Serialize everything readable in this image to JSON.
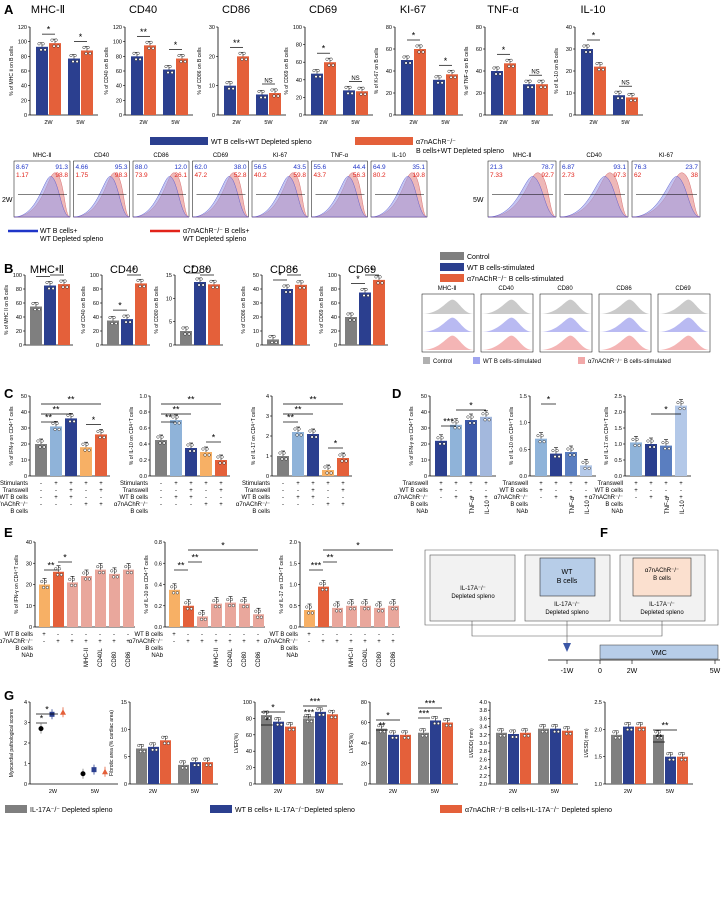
{
  "colors": {
    "wt": "#2b3f8f",
    "ko": "#e4603a",
    "control": "#7f7f7f",
    "wt_light": "#8fb3d9",
    "ko_light": "#e98a8a",
    "orange": "#f7b065",
    "peach": "#e9a79c",
    "blue_line": "#1f35c8",
    "red_line": "#e2231a"
  },
  "letters": {
    "A": "A",
    "B": "B",
    "C": "C",
    "D": "D",
    "E": "E",
    "F": "F",
    "G": "G"
  },
  "panelA": {
    "groups": [
      "2W",
      "5W"
    ],
    "charts": [
      {
        "title": "MHC-Ⅱ",
        "ylabel": "% of MHC Ⅱ on B cells",
        "yticks": [
          "0",
          "20",
          "40",
          "60",
          "80",
          "100",
          "120"
        ],
        "ymax": 120,
        "values": [
          [
            93,
            98
          ],
          [
            77,
            88
          ]
        ],
        "sig": [
          "*",
          "*"
        ]
      },
      {
        "title": "CD40",
        "ylabel": "% of CD40 on B cells",
        "yticks": [
          "0",
          "20",
          "40",
          "60",
          "80",
          "100",
          "120"
        ],
        "ymax": 120,
        "values": [
          [
            80,
            95
          ],
          [
            62,
            77
          ]
        ],
        "sig": [
          "**",
          "*"
        ]
      },
      {
        "title": "CD86",
        "ylabel": "% of CD86 on B cells",
        "yticks": [
          "0",
          "10",
          "20",
          "30"
        ],
        "ymax": 30,
        "values": [
          [
            10,
            20
          ],
          [
            7,
            7.5
          ]
        ],
        "sig": [
          "**",
          "NS"
        ]
      },
      {
        "title": "CD69",
        "ylabel": "% of CD69 on B cells",
        "yticks": [
          "0",
          "20",
          "40",
          "60",
          "80",
          "100"
        ],
        "ymax": 100,
        "values": [
          [
            47,
            60
          ],
          [
            28,
            27
          ]
        ],
        "sig": [
          "*",
          "NS"
        ]
      },
      {
        "title": "KI-67",
        "ylabel": "% of Ki-67 on B cells",
        "yticks": [
          "0",
          "20",
          "40",
          "60",
          "80"
        ],
        "ymax": 80,
        "values": [
          [
            50,
            60
          ],
          [
            32,
            37
          ]
        ],
        "sig": [
          "*",
          "*"
        ]
      },
      {
        "title": "TNF-α",
        "ylabel": "% of TNF-α on B cells",
        "yticks": [
          "0",
          "20",
          "40",
          "60",
          "80"
        ],
        "ymax": 80,
        "values": [
          [
            40,
            47
          ],
          [
            28,
            28
          ]
        ],
        "sig": [
          "*",
          "NS"
        ]
      },
      {
        "title": "IL-10",
        "ylabel": "% of IL-10 on B cells",
        "yticks": [
          "0",
          "10",
          "20",
          "30",
          "40"
        ],
        "ymax": 40,
        "values": [
          [
            30,
            22
          ],
          [
            9,
            8
          ]
        ],
        "sig": [
          "*",
          "NS"
        ]
      }
    ],
    "legend_wt": "WT B cells+WT Depleted spleno",
    "legend_ko": "α7nAChR⁻/⁻ B cells+WT Depleted spleno"
  },
  "panelA_flow": {
    "row_label_2w": "2W",
    "row_label_5w": "5W",
    "plots_2w": [
      {
        "title": "MHC-Ⅱ",
        "blue": [
          "8.67",
          "91.3"
        ],
        "red": [
          "1.17",
          "98.8"
        ]
      },
      {
        "title": "CD40",
        "blue": [
          "4.66",
          "95.3"
        ],
        "red": [
          "1.75",
          "98.3"
        ]
      },
      {
        "title": "CD86",
        "blue": [
          "88.0",
          "12.0"
        ],
        "red": [
          "73.9",
          "26.1"
        ]
      },
      {
        "title": "CD69",
        "blue": [
          "62.0",
          "38.0"
        ],
        "red": [
          "47.2",
          "52.8"
        ]
      },
      {
        "title": "KI-67",
        "blue": [
          "56.5",
          "43.5"
        ],
        "red": [
          "40.2",
          "59.8"
        ]
      },
      {
        "title": "TNF-α",
        "blue": [
          "55.6",
          "44.4"
        ],
        "red": [
          "43.7",
          "56.3"
        ]
      },
      {
        "title": "IL-10",
        "blue": [
          "64.9",
          "35.1"
        ],
        "red": [
          "80.2",
          "19.8"
        ]
      }
    ],
    "plots_5w": [
      {
        "title": "MHC-Ⅱ",
        "blue": [
          "21.3",
          "78.7"
        ],
        "red": [
          "7.33",
          "92.7"
        ]
      },
      {
        "title": "CD40",
        "blue": [
          "6.87",
          "93.1"
        ],
        "red": [
          "2.73",
          "97.3"
        ]
      },
      {
        "title": "KI-67",
        "blue": [
          "76.3",
          "23.7"
        ],
        "red": [
          "62",
          "38"
        ]
      }
    ],
    "legend_wt": "WT B cells+\nWT Depleted spleno",
    "legend_ko": "α7nAChR⁻/⁻ B cells+\nWT Depleted spleno"
  },
  "panelB": {
    "charts": [
      {
        "title": "MHC-Ⅱ",
        "ylabel": "% of MHC II on B cells",
        "yticks": [
          "0",
          "20",
          "40",
          "60",
          "80",
          "100"
        ],
        "ymax": 100,
        "values": [
          55,
          85,
          87
        ]
      },
      {
        "title": "CD40",
        "ylabel": "% of CD40 on B cells",
        "yticks": [
          "0",
          "20",
          "40",
          "60",
          "80",
          "100"
        ],
        "ymax": 100,
        "values": [
          35,
          37,
          88
        ]
      },
      {
        "title": "CD80",
        "ylabel": "% of CD80 on B cells",
        "yticks": [
          "0",
          "5",
          "10",
          "15"
        ],
        "ymax": 15,
        "values": [
          3,
          13.5,
          13
        ]
      },
      {
        "title": "CD86",
        "ylabel": "% of CD86 on B cells",
        "yticks": [
          "0",
          "10",
          "20",
          "30",
          "40",
          "50"
        ],
        "ymax": 50,
        "values": [
          4,
          40,
          43
        ]
      },
      {
        "title": "CD69",
        "ylabel": "% of CD69 on B cells",
        "yticks": [
          "0",
          "20",
          "40",
          "60",
          "80",
          "100"
        ],
        "ymax": 100,
        "values": [
          40,
          75,
          93
        ]
      }
    ],
    "legend": [
      "Control",
      "WT B cells-stimulated",
      "α7nAChR⁻/⁻ B cells-stimulated"
    ],
    "hist_titles": [
      "MHC-Ⅱ",
      "CD40",
      "CD80",
      "CD86",
      "CD69"
    ],
    "hist_legend": [
      "Control",
      "WT B cells-stimulated",
      "α7nAChR⁻/⁻ B cells-stimulated"
    ]
  },
  "panelC": {
    "charts": [
      {
        "ylabel": "% of IFN-γ on CD4⁺T cells",
        "yticks": [
          "0",
          "10",
          "20",
          "30",
          "40",
          "50"
        ],
        "ymax": 50,
        "values": [
          20,
          31,
          36,
          18,
          26
        ]
      },
      {
        "ylabel": "% of IL-10 on CD4⁺T cells",
        "yticks": [
          "0.0",
          "0.2",
          "0.4",
          "0.6",
          "0.8",
          "1.0"
        ],
        "ymax": 1.0,
        "values": [
          0.45,
          0.7,
          0.35,
          0.3,
          0.2
        ]
      },
      {
        "ylabel": "% of IL-17 on CD4⁺T cells",
        "yticks": [
          "0",
          "1",
          "2",
          "3",
          "4"
        ],
        "ymax": 4,
        "values": [
          1.0,
          2.2,
          2.1,
          0.3,
          0.9
        ]
      }
    ],
    "rows": [
      "Stimulants",
      "Transwell",
      "WT B cells",
      "α7nAChR⁻/⁻",
      "B cells"
    ],
    "row_values": [
      [
        "-",
        "+",
        "+",
        "+",
        "+"
      ],
      [
        "-",
        "-",
        "+",
        "-",
        "+"
      ],
      [
        "-",
        "+",
        "+",
        "-",
        "-"
      ],
      [
        "-",
        "-",
        "-",
        "+",
        "+"
      ]
    ]
  },
  "panelD": {
    "charts": [
      {
        "ylabel": "% of IFN-γ on CD4⁺T cells",
        "yticks": [
          "0",
          "10",
          "20",
          "30",
          "40",
          "50"
        ],
        "ymax": 50,
        "values": [
          22,
          32,
          35,
          37
        ]
      },
      {
        "ylabel": "% of IL-10 on CD4⁺T cells",
        "yticks": [
          "0.0",
          "0.5",
          "1.0",
          "1.5"
        ],
        "ymax": 1.5,
        "values": [
          0.7,
          0.42,
          0.45,
          0.2
        ]
      },
      {
        "ylabel": "% of IL-17 on CD4⁺T cells",
        "yticks": [
          "0.0",
          "0.5",
          "1.0",
          "1.5",
          "2.0",
          "2.5"
        ],
        "ymax": 2.5,
        "values": [
          1.05,
          1.0,
          0.95,
          2.2
        ]
      }
    ],
    "rows": [
      "Transwell",
      "WT B cells",
      "α7nAChR⁻/⁻",
      "B cells",
      "NAb"
    ],
    "nab": [
      "TNF-α",
      "IL-10"
    ]
  },
  "panelE": {
    "charts": [
      {
        "ylabel": "% of IFN-γ on CD4⁺T cells",
        "yticks": [
          "0",
          "10",
          "20",
          "30",
          "40"
        ],
        "ymax": 40,
        "values": [
          20,
          26,
          21,
          24,
          27,
          25,
          27
        ]
      },
      {
        "ylabel": "% of IL-10 on CD4⁺T cells",
        "yticks": [
          "0.0",
          "0.2",
          "0.4",
          "0.6",
          "0.8"
        ],
        "ymax": 0.8,
        "values": [
          0.35,
          0.2,
          0.1,
          0.22,
          0.23,
          0.22,
          0.12
        ]
      },
      {
        "ylabel": "% of IL-17 on CD4⁺T cells",
        "yticks": [
          "0.0",
          "0.5",
          "1.0",
          "1.5",
          "2.0"
        ],
        "ymax": 2.0,
        "values": [
          0.4,
          0.95,
          0.45,
          0.5,
          0.5,
          0.45,
          0.5
        ]
      }
    ],
    "rows": [
      "WT B cells",
      "α7nAChR⁻/⁻",
      "B cells",
      "NAb"
    ],
    "nab": [
      "MHC-II",
      "CD40L",
      "CD80",
      "CD86"
    ]
  },
  "panelF": {
    "box1": "IL-17A⁻/⁻\nDepleted spleno",
    "box2": "IL-17A⁻/⁻\nDepleted spleno",
    "box3": "IL-17A⁻/⁻\nDepleted spleno",
    "wt": "WT\nB cells",
    "ko": "α7nAChR⁻/⁻\nB cells",
    "vmc": "VMC",
    "ticks": [
      "-1W",
      "0",
      "2W",
      "5W"
    ]
  },
  "panelG": {
    "charts": [
      {
        "ylabel": "Myocardial pathological scores",
        "yticks": [
          "0",
          "1",
          "2",
          "3",
          "4"
        ],
        "ymax": 4,
        "values": [
          [
            2.7,
            3.4,
            3.5
          ],
          [
            0.5,
            0.7,
            0.6
          ]
        ],
        "type": "point"
      },
      {
        "ylabel": "Fibrotic area (% cardiac area)",
        "yticks": [
          "0",
          "5",
          "10",
          "15"
        ],
        "ymax": 15,
        "values": [
          [
            6.5,
            6.8,
            8
          ],
          [
            3.5,
            4,
            4
          ]
        ],
        "type": "bar"
      },
      {
        "ylabel": "LVEF(%)",
        "yticks": [
          "0",
          "20",
          "40",
          "60",
          "80",
          "100"
        ],
        "ymax": 100,
        "values": [
          [
            84,
            76,
            70
          ],
          [
            80,
            88,
            85
          ]
        ],
        "type": "bar"
      },
      {
        "ylabel": "LVFS(%)",
        "yticks": [
          "0",
          "20",
          "40",
          "60",
          "80"
        ],
        "ymax": 80,
        "values": [
          [
            54,
            48,
            48
          ],
          [
            50,
            62,
            60
          ]
        ],
        "type": "bar"
      },
      {
        "ylabel": "LVEDD( mm)",
        "yticks": [
          "2.0",
          "2.2",
          "2.4",
          "2.6",
          "2.8",
          "3.0",
          "3.2",
          "3.4",
          "3.6",
          "3.8",
          "4.0"
        ],
        "ymax": 4.0,
        "ymin": 2.0,
        "values": [
          [
            3.25,
            3.22,
            3.25
          ],
          [
            3.35,
            3.35,
            3.3
          ]
        ],
        "type": "bar"
      },
      {
        "ylabel": "LVESD( mm)",
        "yticks": [
          "1.0",
          "1.5",
          "2.0",
          "2.5"
        ],
        "ymax": 2.5,
        "ymin": 1.0,
        "values": [
          [
            1.9,
            2.05,
            2.05
          ],
          [
            1.9,
            1.5,
            1.5
          ]
        ],
        "type": "bar"
      }
    ],
    "groups": [
      "2W",
      "5W"
    ],
    "legend": [
      "IL-17A⁻/⁻ Depleted spleno",
      "WT B cells+ IL-17A⁻/⁻Depleted spleno",
      "α7nAChR⁻/⁻B cells+IL-17A⁻/⁻ Depleted spleno"
    ]
  }
}
